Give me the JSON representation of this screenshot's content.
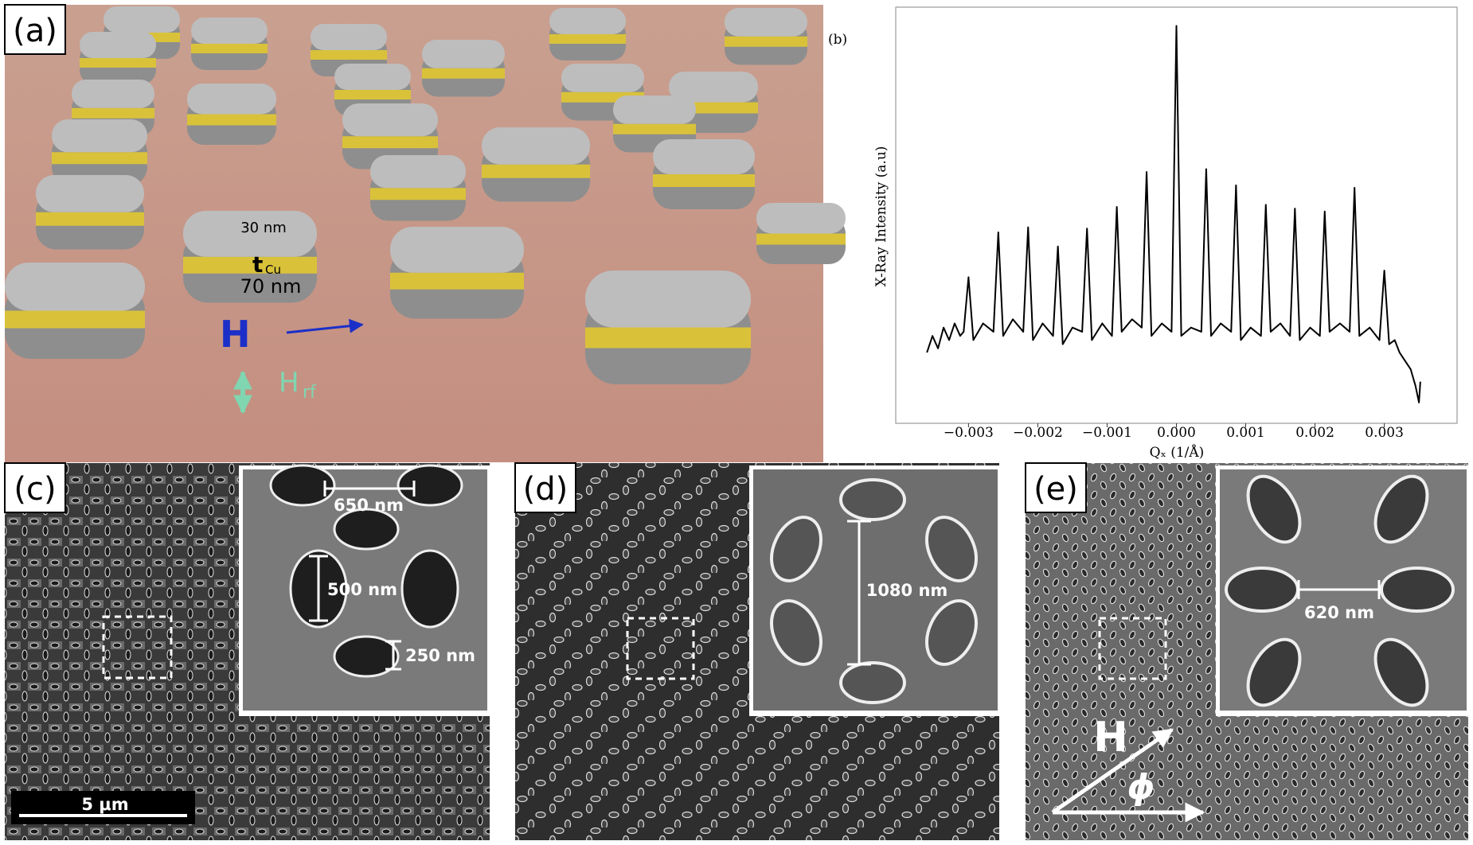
{
  "panel_a": {
    "label": "(a)",
    "top_thickness": "30 nm",
    "t": "t",
    "t_sub": "Cu",
    "bottom_thickness": "70 nm",
    "field": "H",
    "rf_field": "H",
    "rf_sub": "rf"
  },
  "chart_data": {
    "type": "line",
    "label": "(b)",
    "xlabel": "Qₓ (1/Å)",
    "ylabel": "X-Ray Intensity (a.u)",
    "x": [
      -0.0036,
      -0.00352,
      -0.00344,
      -0.00336,
      -0.00328,
      -0.0032,
      -0.00312,
      -0.00307,
      -0.003,
      -0.00293,
      -0.00279,
      -0.00264,
      -0.00257,
      -0.0025,
      -0.00236,
      -0.00221,
      -0.00214,
      -0.00207,
      -0.00193,
      -0.00178,
      -0.00171,
      -0.00164,
      -0.0015,
      -0.00136,
      -0.00129,
      -0.00122,
      -0.00107,
      -0.00093,
      -0.00086,
      -0.00079,
      -0.00064,
      -0.0005,
      -0.00043,
      -0.00036,
      -0.00021,
      -7e-05,
      0,
      7e-05,
      0.00021,
      0.00036,
      0.00043,
      0.0005,
      0.00064,
      0.00079,
      0.00086,
      0.00093,
      0.00107,
      0.00122,
      0.00129,
      0.00136,
      0.0015,
      0.00164,
      0.00171,
      0.00178,
      0.00193,
      0.00207,
      0.00214,
      0.00221,
      0.00236,
      0.0025,
      0.00257,
      0.00264,
      0.00279,
      0.00293,
      0.003,
      0.00307,
      0.00315,
      0.00322,
      0.0033,
      0.00338,
      0.00345,
      0.0035,
      0.00352
    ],
    "series": [
      {
        "color": "#000000",
        "values": [
          17,
          21,
          18,
          23,
          20,
          24,
          21,
          22,
          35.1,
          20,
          24,
          22,
          45.9,
          21,
          25,
          22,
          47.1,
          20,
          24,
          21,
          42.5,
          19,
          23,
          22,
          46.8,
          20,
          24,
          21,
          52,
          22,
          25,
          23,
          60.4,
          21,
          24,
          22,
          95.5,
          21,
          23,
          22,
          61.1,
          21,
          24,
          22,
          57.2,
          20,
          23,
          21,
          52.5,
          22,
          24,
          21,
          51.6,
          20,
          23,
          21,
          50.9,
          22,
          24,
          22,
          56.6,
          21,
          23,
          20,
          36.7,
          19,
          20,
          17,
          15,
          13,
          9,
          5,
          10
        ]
      }
    ],
    "xlim": [
      -0.00405,
      0.00405
    ],
    "ylim": [
      0,
      100
    ],
    "xticks": [
      {
        "value": -0.003,
        "label": "−0.003"
      },
      {
        "value": -0.002,
        "label": "−0.002"
      },
      {
        "value": -0.001,
        "label": "−0.001"
      },
      {
        "value": 0,
        "label": "0.000"
      },
      {
        "value": 0.001,
        "label": "0.001"
      },
      {
        "value": 0.002,
        "label": "0.002"
      },
      {
        "value": 0.003,
        "label": "0.003"
      }
    ]
  },
  "panel_c": {
    "label": "(c)",
    "spacing": "650 nm",
    "length": "500 nm",
    "width": "250 nm",
    "scale_bar": "5 μm"
  },
  "panel_d": {
    "label": "(d)",
    "spacing": "1080 nm"
  },
  "panel_e": {
    "label": "(e)",
    "spacing": "620 nm",
    "field": "H",
    "angle": "ϕ"
  }
}
